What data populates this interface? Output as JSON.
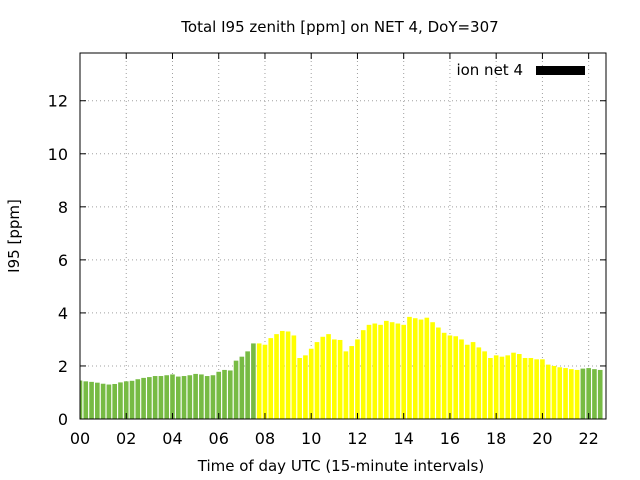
{
  "chart_data": {
    "type": "bar",
    "title": "Total I95 zenith [ppm] on NET 4, DoY=307",
    "xlabel": "Time of day UTC (15-minute intervals)",
    "ylabel": "I95 [ppm]",
    "xlim": [
      0,
      22.75
    ],
    "ylim": [
      0,
      13.8
    ],
    "x_ticks": [
      "00",
      "02",
      "04",
      "06",
      "08",
      "10",
      "12",
      "14",
      "16",
      "18",
      "20",
      "22"
    ],
    "y_ticks": [
      "0",
      "2",
      "4",
      "6",
      "8",
      "10",
      "12"
    ],
    "grid": true,
    "legend": {
      "label": "ion net 4",
      "color": "#000000",
      "placement": "top-right"
    },
    "colors": {
      "daytime": "#ffff00",
      "nighttime": "#77bb44"
    },
    "daytime_range": [
      7.625,
      21.625
    ],
    "bar_interval_hours": 0.25,
    "values": [
      1.45,
      1.42,
      1.4,
      1.37,
      1.33,
      1.3,
      1.32,
      1.38,
      1.42,
      1.44,
      1.5,
      1.55,
      1.58,
      1.62,
      1.62,
      1.65,
      1.68,
      1.6,
      1.62,
      1.65,
      1.7,
      1.68,
      1.62,
      1.65,
      1.78,
      1.85,
      1.83,
      2.2,
      2.35,
      2.55,
      2.85,
      2.85,
      2.8,
      3.05,
      3.2,
      3.32,
      3.3,
      3.15,
      2.3,
      2.4,
      2.65,
      2.9,
      3.1,
      3.2,
      3.0,
      2.98,
      2.55,
      2.75,
      3.0,
      3.35,
      3.55,
      3.6,
      3.55,
      3.7,
      3.65,
      3.6,
      3.55,
      3.85,
      3.8,
      3.75,
      3.82,
      3.65,
      3.45,
      3.25,
      3.15,
      3.12,
      3.0,
      2.8,
      2.9,
      2.7,
      2.55,
      2.3,
      2.4,
      2.35,
      2.4,
      2.5,
      2.45,
      2.3,
      2.3,
      2.25,
      2.25,
      2.05,
      2.0,
      1.95,
      1.92,
      1.88,
      1.85,
      1.9,
      1.92,
      1.88,
      1.85
    ]
  }
}
